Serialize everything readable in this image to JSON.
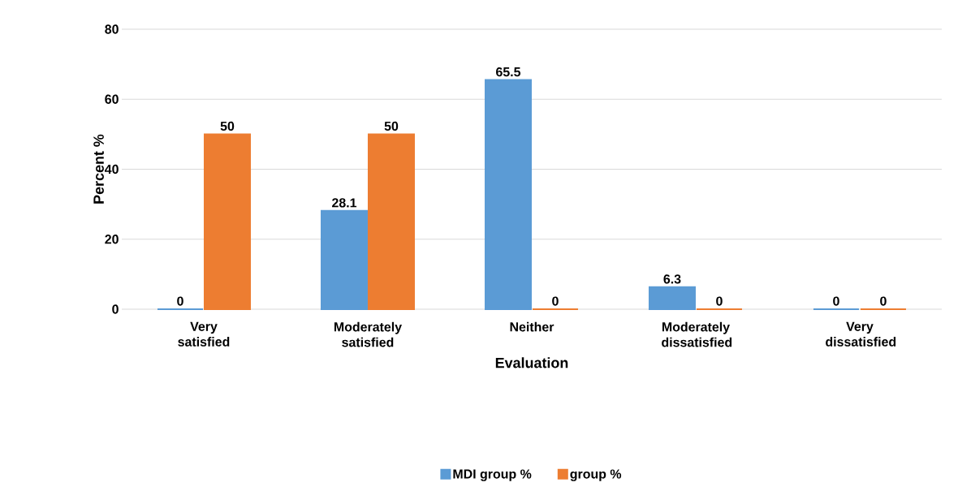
{
  "chart_data": {
    "type": "bar",
    "xlabel": "Evaluation",
    "ylabel": "Percent %",
    "categories": [
      "Very satisfied",
      "Moderately satisfied",
      "Neither",
      "Moderately dissatisfied",
      "Very dissatisfied"
    ],
    "series": [
      {
        "name": "MDI group %",
        "color": "#5b9bd5",
        "values": [
          0,
          28.1,
          65.5,
          6.3,
          0
        ]
      },
      {
        "name": "group %",
        "color": "#ed7d31",
        "values": [
          50,
          50,
          0,
          0,
          0
        ]
      }
    ],
    "ylim": [
      0,
      80
    ],
    "yticks": [
      0,
      20,
      40,
      60,
      80
    ],
    "grid": "y",
    "legend": "bottom",
    "data_labels": true
  }
}
